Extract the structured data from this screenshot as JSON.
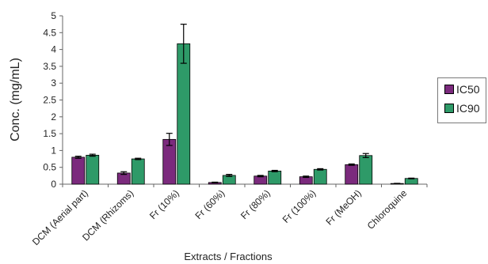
{
  "chart_data": {
    "type": "bar",
    "title": "",
    "xlabel": "Extracts / Fractions",
    "ylabel": "Conc. (mg/mL)",
    "ylim": [
      0,
      5
    ],
    "yticks": [
      "0",
      "0.5",
      "1",
      "1.5",
      "2",
      "2.5",
      "3",
      "3.5",
      "4",
      "4.5",
      "5"
    ],
    "grid": false,
    "legend_position": "right",
    "categories": [
      "DCM (Aerial part)",
      "DCM (Rhizoms)",
      "Fr (10%)",
      "Fr (60%)",
      "Fr (80%)",
      "Fr (100%)",
      "Fr (MeOH)",
      "Chloroquine"
    ],
    "series": [
      {
        "name": "IC50",
        "color": "#7b2a7d",
        "values": [
          0.8,
          0.33,
          1.33,
          0.05,
          0.24,
          0.22,
          0.58,
          0.02
        ],
        "errors": [
          0.03,
          0.04,
          0.18,
          0.01,
          0.02,
          0.02,
          0.02,
          0.005
        ]
      },
      {
        "name": "IC90",
        "color": "#2e9a68",
        "values": [
          0.86,
          0.75,
          4.17,
          0.26,
          0.39,
          0.44,
          0.85,
          0.17
        ],
        "errors": [
          0.03,
          0.02,
          0.58,
          0.03,
          0.02,
          0.02,
          0.06,
          0.01
        ]
      }
    ]
  }
}
